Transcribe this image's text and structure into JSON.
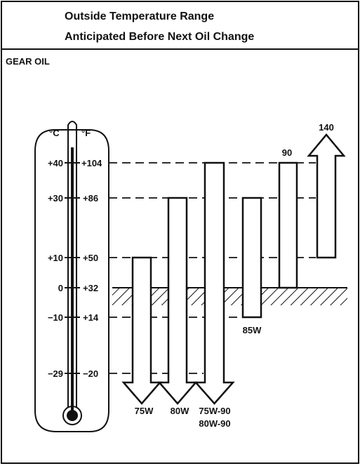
{
  "header": {
    "title": [
      "Outside Temperature Range",
      "Anticipated Before Next Oil Change"
    ]
  },
  "section": "GEAR OIL",
  "thermometer": {
    "celsius_unit": "°C",
    "fahrenheit_unit": "°F",
    "celsius": [
      "+40",
      "+30",
      "+10",
      "0",
      "−10",
      "−29"
    ],
    "fahrenheit": [
      "+104",
      "+86",
      "+50",
      "+32",
      "+14",
      "−20"
    ]
  },
  "oils": [
    "75W",
    "80W",
    "75W-90",
    "80W-90",
    "85W",
    "90",
    "140"
  ]
}
